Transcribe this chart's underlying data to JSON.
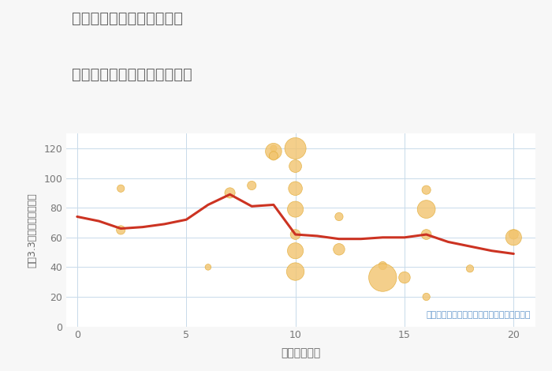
{
  "title_line1": "愛知県稲沢市平和町法立の",
  "title_line2": "駅距離別中古マンション価格",
  "xlabel": "駅距離（分）",
  "ylabel": "坪（3.3㎡）単価（万円）",
  "annotation": "円の大きさは、取引のあった物件面積を示す",
  "background_color": "#f7f7f7",
  "plot_background": "#ffffff",
  "title_color": "#666666",
  "bubble_color": "#f2c46e",
  "bubble_alpha": 0.8,
  "bubble_edge_color": "#e0a830",
  "line_color": "#cc3322",
  "line_width": 2.2,
  "annotation_color": "#6699cc",
  "xlim": [
    -0.5,
    21
  ],
  "ylim": [
    0,
    130
  ],
  "xticks": [
    0,
    5,
    10,
    15,
    20
  ],
  "yticks": [
    0,
    20,
    40,
    60,
    80,
    100,
    120
  ],
  "scatter_x": [
    2,
    2,
    6,
    7,
    8,
    9,
    9,
    9,
    10,
    10,
    10,
    10,
    10,
    10,
    10,
    12,
    12,
    14,
    14,
    15,
    16,
    16,
    16,
    16,
    18,
    20,
    20
  ],
  "scatter_y": [
    93,
    65,
    40,
    90,
    95,
    120,
    118,
    115,
    120,
    108,
    93,
    79,
    62,
    51,
    37,
    74,
    52,
    41,
    33,
    33,
    92,
    79,
    62,
    20,
    39,
    62,
    60
  ],
  "scatter_size": [
    45,
    65,
    30,
    90,
    65,
    35,
    220,
    65,
    380,
    130,
    160,
    210,
    85,
    210,
    260,
    55,
    110,
    55,
    650,
    110,
    65,
    270,
    85,
    45,
    45,
    75,
    210
  ],
  "line_x": [
    0,
    1,
    2,
    3,
    4,
    5,
    6,
    7,
    8,
    9,
    10,
    11,
    12,
    13,
    14,
    15,
    16,
    17,
    18,
    19,
    20
  ],
  "line_y": [
    74,
    71,
    66,
    67,
    69,
    72,
    82,
    89,
    81,
    82,
    62,
    61,
    59,
    59,
    60,
    60,
    62,
    57,
    54,
    51,
    49
  ]
}
